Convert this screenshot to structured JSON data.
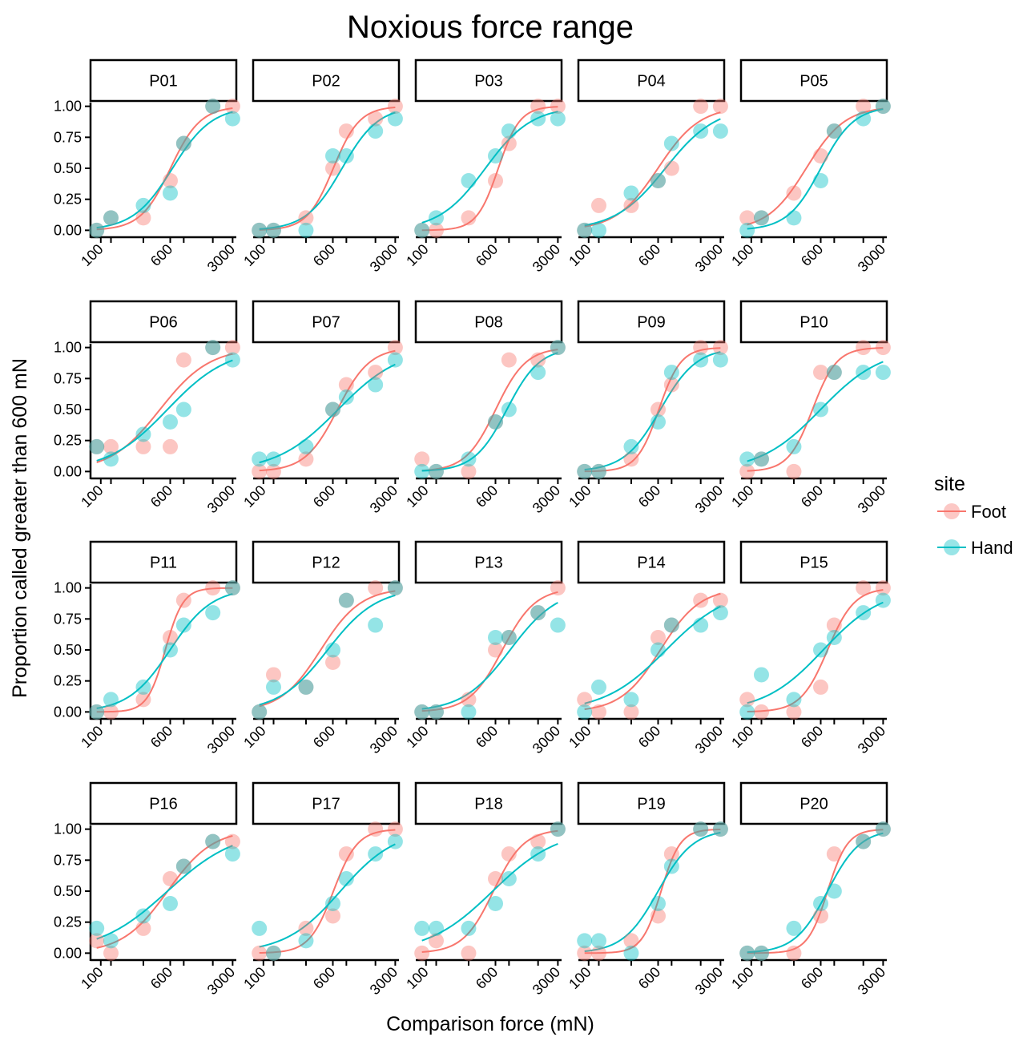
{
  "chart_data": {
    "type": "scatter",
    "title": "Noxious force range",
    "xlabel": "Comparison force (mN)",
    "ylabel": "Proportion called greater than 600 mN",
    "x_scale": "log",
    "x": [
      90,
      130,
      300,
      600,
      850,
      1800,
      3000
    ],
    "x_tick_labels": [
      "100",
      "600",
      "3000"
    ],
    "x_tick_values": [
      100,
      600,
      3000
    ],
    "y_ticks": [
      0,
      0.25,
      0.5,
      0.75,
      1
    ],
    "y_tick_labels": [
      "0.00",
      "0.25",
      "0.50",
      "0.75",
      "1.00"
    ],
    "ylim": [
      -0.03,
      1.03
    ],
    "legend": {
      "title": "site",
      "position": "right",
      "entries": [
        {
          "label": "Foot",
          "color": "#F8766D"
        },
        {
          "label": "Hand",
          "color": "#00BFC4"
        }
      ]
    },
    "facets": [
      {
        "label": "P01",
        "Foot": [
          0,
          0.1,
          0.1,
          0.4,
          0.7,
          1,
          1
        ],
        "Hand": [
          0,
          0.1,
          0.2,
          0.3,
          0.7,
          1,
          0.9
        ]
      },
      {
        "label": "P02",
        "Foot": [
          0,
          0,
          0.1,
          0.5,
          0.8,
          0.9,
          1
        ],
        "Hand": [
          0,
          0,
          0,
          0.6,
          0.6,
          0.8,
          0.9
        ]
      },
      {
        "label": "P03",
        "Foot": [
          0,
          0,
          0.1,
          0.4,
          0.7,
          1,
          1
        ],
        "Hand": [
          0,
          0.1,
          0.4,
          0.6,
          0.8,
          0.9,
          0.9
        ]
      },
      {
        "label": "P04",
        "Foot": [
          0,
          0.2,
          0.2,
          0.4,
          0.5,
          1,
          1
        ],
        "Hand": [
          0,
          0,
          0.3,
          0.4,
          0.7,
          0.8,
          0.8
        ]
      },
      {
        "label": "P05",
        "Foot": [
          0.1,
          0.1,
          0.3,
          0.6,
          0.8,
          1,
          1
        ],
        "Hand": [
          0,
          0.1,
          0.1,
          0.4,
          0.8,
          0.9,
          1
        ]
      },
      {
        "label": "P06",
        "Foot": [
          0.2,
          0.2,
          0.2,
          0.2,
          0.9,
          1,
          1
        ],
        "Hand": [
          0.2,
          0.1,
          0.3,
          0.4,
          0.5,
          1,
          0.9
        ]
      },
      {
        "label": "P07",
        "Foot": [
          0,
          0,
          0.1,
          0.5,
          0.7,
          0.8,
          1
        ],
        "Hand": [
          0.1,
          0.1,
          0.2,
          0.5,
          0.6,
          0.7,
          0.9
        ]
      },
      {
        "label": "P08",
        "Foot": [
          0.1,
          0,
          0,
          0.4,
          0.9,
          0.9,
          1
        ],
        "Hand": [
          0,
          0,
          0.1,
          0.4,
          0.5,
          0.8,
          1
        ]
      },
      {
        "label": "P09",
        "Foot": [
          0,
          0,
          0.1,
          0.5,
          0.7,
          1,
          1
        ],
        "Hand": [
          0,
          0,
          0.2,
          0.4,
          0.8,
          0.9,
          0.9
        ]
      },
      {
        "label": "P10",
        "Foot": [
          0,
          0.1,
          0,
          0.8,
          0.8,
          1,
          1
        ],
        "Hand": [
          0.1,
          0.1,
          0.2,
          0.5,
          0.8,
          0.8,
          0.8
        ]
      },
      {
        "label": "P11",
        "Foot": [
          0,
          0,
          0.1,
          0.6,
          0.9,
          1,
          1
        ],
        "Hand": [
          0,
          0.1,
          0.2,
          0.5,
          0.7,
          0.8,
          1
        ]
      },
      {
        "label": "P12",
        "Foot": [
          0,
          0.3,
          0.2,
          0.4,
          0.9,
          1,
          1
        ],
        "Hand": [
          0,
          0.2,
          0.2,
          0.5,
          0.9,
          0.7,
          1
        ]
      },
      {
        "label": "P13",
        "Foot": [
          0,
          0,
          0.1,
          0.5,
          0.6,
          0.8,
          1
        ],
        "Hand": [
          0,
          0,
          0,
          0.6,
          0.6,
          0.8,
          0.7
        ]
      },
      {
        "label": "P14",
        "Foot": [
          0.1,
          0,
          0,
          0.6,
          0.7,
          0.9,
          0.9
        ],
        "Hand": [
          0,
          0.2,
          0.1,
          0.5,
          0.7,
          0.7,
          0.8
        ]
      },
      {
        "label": "P15",
        "Foot": [
          0.1,
          0,
          0,
          0.2,
          0.7,
          1,
          1
        ],
        "Hand": [
          0,
          0.3,
          0.1,
          0.5,
          0.6,
          0.8,
          0.9
        ]
      },
      {
        "label": "P16",
        "Foot": [
          0.1,
          0,
          0.2,
          0.6,
          0.7,
          0.9,
          0.9
        ],
        "Hand": [
          0.2,
          0.1,
          0.3,
          0.4,
          0.7,
          0.9,
          0.8
        ]
      },
      {
        "label": "P17",
        "Foot": [
          0,
          0,
          0.2,
          0.3,
          0.8,
          1,
          1
        ],
        "Hand": [
          0.2,
          0,
          0.1,
          0.4,
          0.6,
          0.8,
          0.9
        ]
      },
      {
        "label": "P18",
        "Foot": [
          0,
          0.1,
          0,
          0.6,
          0.8,
          0.9,
          1
        ],
        "Hand": [
          0.2,
          0.2,
          0.2,
          0.4,
          0.6,
          0.8,
          1
        ]
      },
      {
        "label": "P19",
        "Foot": [
          0,
          0,
          0.1,
          0.3,
          0.8,
          1,
          1
        ],
        "Hand": [
          0.1,
          0.1,
          0,
          0.4,
          0.7,
          1,
          1
        ]
      },
      {
        "label": "P20",
        "Foot": [
          0,
          0,
          0,
          0.3,
          0.8,
          0.9,
          1
        ],
        "Hand": [
          0,
          0,
          0.2,
          0.4,
          0.5,
          0.9,
          1
        ]
      }
    ]
  }
}
